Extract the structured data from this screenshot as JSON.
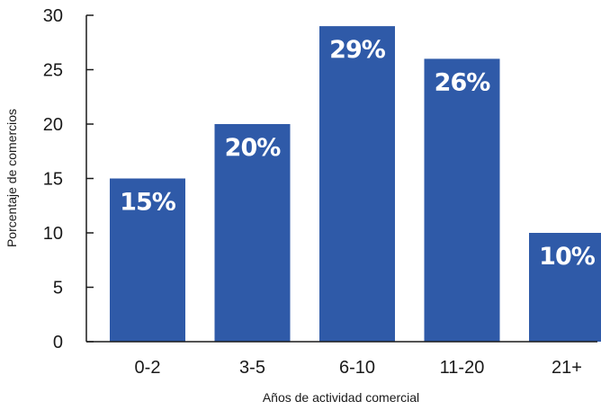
{
  "chart_data": {
    "type": "bar",
    "categories": [
      "0-2",
      "3-5",
      "6-10",
      "11-20",
      "21+"
    ],
    "values": [
      15,
      20,
      29,
      26,
      10
    ],
    "data_labels": [
      "15%",
      "20%",
      "29%",
      "26%",
      "10%"
    ],
    "xlabel": "Años de actividad comercial",
    "ylabel": "Porcentaje de comercios",
    "ylim": [
      0,
      30
    ],
    "yticks": [
      0,
      5,
      10,
      15,
      20,
      25,
      30
    ],
    "grid": false,
    "bar_color": "#2f5aa8",
    "label_color": "#ffffff"
  }
}
